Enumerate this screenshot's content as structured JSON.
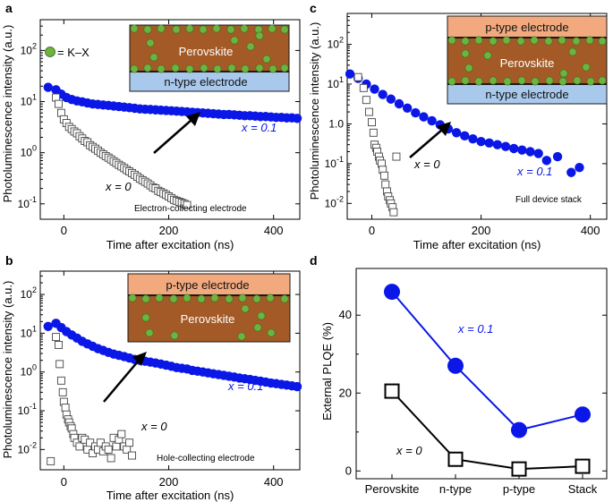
{
  "colors": {
    "blue": "#0a17e6",
    "black": "#1a1a1a",
    "perovskite": "#a35a26",
    "n_type": "#a9c9ec",
    "p_type": "#f3a97e",
    "kx_dot": "#6db33f"
  },
  "legend": {
    "kx_label": "= K–X"
  },
  "chart_data": [
    {
      "id": "a",
      "type": "scatter",
      "panel_letter": "a",
      "ylabel": "Photoluminescence intensity (a.u.)",
      "xlabel": "Time after excitation (ns)",
      "ylog": true,
      "ylim": [
        0.05,
        400
      ],
      "xlim": [
        -45,
        450
      ],
      "xticks": [
        0,
        200,
        400
      ],
      "yticks": [
        {
          "v": 0.1,
          "base": "10",
          "exp": "-1"
        },
        {
          "v": 1,
          "base": "10",
          "exp": "0"
        },
        {
          "v": 10,
          "base": "10",
          "exp": "1"
        },
        {
          "v": 100,
          "base": "10",
          "exp": "2"
        }
      ],
      "inset_label": "Electron-collecting electrode",
      "diagram": {
        "layers": [
          {
            "label": "Perovskite",
            "kind": "perovskite"
          },
          {
            "label": "n-type electrode",
            "kind": "n"
          }
        ]
      },
      "series": [
        {
          "name": "x = 0.1",
          "label": "x = 0.1",
          "style": "blue-dot",
          "x": [
            -30,
            -15,
            -5,
            5,
            15,
            25,
            35,
            45,
            55,
            65,
            75,
            85,
            95,
            105,
            115,
            125,
            135,
            145,
            155,
            165,
            175,
            185,
            195,
            205,
            215,
            225,
            235,
            245,
            255,
            265,
            275,
            285,
            295,
            305,
            315,
            325,
            335,
            345,
            355,
            365,
            375,
            385,
            395,
            405,
            415,
            425,
            435,
            445
          ],
          "y": [
            19,
            17,
            14,
            12,
            11,
            10.3,
            9.9,
            9.4,
            9.0,
            8.8,
            8.6,
            8.4,
            8.2,
            8.0,
            7.8,
            7.6,
            7.4,
            7.2,
            7.1,
            7.0,
            6.9,
            6.8,
            6.7,
            6.6,
            6.5,
            6.4,
            6.3,
            6.2,
            6.1,
            6.0,
            5.9,
            5.8,
            5.7,
            5.6,
            5.6,
            5.5,
            5.4,
            5.3,
            5.3,
            5.2,
            5.1,
            5.1,
            5.0,
            4.9,
            4.9,
            4.8,
            4.8,
            4.7
          ]
        },
        {
          "name": "x = 0",
          "label": "x = 0",
          "style": "open-square",
          "x": [
            -15,
            -10,
            -5,
            0,
            5,
            10,
            15,
            20,
            25,
            30,
            35,
            40,
            45,
            50,
            55,
            60,
            65,
            70,
            75,
            80,
            85,
            90,
            95,
            100,
            105,
            110,
            115,
            120,
            125,
            130,
            135,
            140,
            145,
            150,
            155,
            160,
            165,
            170,
            175,
            180,
            185,
            190,
            195,
            200,
            205,
            210,
            215,
            220,
            225,
            230,
            235
          ],
          "y": [
            12,
            9,
            6,
            4.5,
            3.8,
            3.2,
            2.9,
            2.6,
            2.4,
            2.1,
            1.9,
            1.7,
            1.6,
            1.4,
            1.3,
            1.2,
            1.1,
            1.0,
            0.93,
            0.86,
            0.8,
            0.74,
            0.68,
            0.63,
            0.58,
            0.54,
            0.5,
            0.46,
            0.43,
            0.4,
            0.37,
            0.34,
            0.31,
            0.29,
            0.27,
            0.25,
            0.23,
            0.21,
            0.2,
            0.18,
            0.17,
            0.16,
            0.15,
            0.14,
            0.13,
            0.12,
            0.115,
            0.11,
            0.105,
            0.1,
            0.095
          ]
        }
      ]
    },
    {
      "id": "b",
      "type": "scatter",
      "panel_letter": "b",
      "ylabel": "Photoluminescence intensity (a.u.)",
      "xlabel": "Time after excitation (ns)",
      "ylog": true,
      "ylim": [
        0.003,
        400
      ],
      "xlim": [
        -45,
        450
      ],
      "xticks": [
        0,
        200,
        400
      ],
      "yticks": [
        {
          "v": 0.01,
          "base": "10",
          "exp": "-2"
        },
        {
          "v": 0.1,
          "base": "10",
          "exp": "-1"
        },
        {
          "v": 1,
          "base": "10",
          "exp": "0"
        },
        {
          "v": 10,
          "base": "10",
          "exp": "1"
        },
        {
          "v": 100,
          "base": "10",
          "exp": "2"
        }
      ],
      "inset_label": "Hole-collecting electrode",
      "diagram": {
        "layers": [
          {
            "label": "p-type electrode",
            "kind": "p"
          },
          {
            "label": "Perovskite",
            "kind": "perovskite"
          }
        ]
      },
      "series": [
        {
          "name": "x = 0.1",
          "label": "x = 0.1",
          "style": "blue-dot",
          "x": [
            -30,
            -15,
            -5,
            5,
            15,
            25,
            35,
            45,
            55,
            65,
            75,
            85,
            95,
            105,
            115,
            125,
            135,
            145,
            155,
            165,
            175,
            185,
            195,
            205,
            215,
            225,
            235,
            245,
            255,
            265,
            275,
            285,
            295,
            305,
            315,
            325,
            335,
            345,
            355,
            365,
            375,
            385,
            395,
            405,
            415,
            425,
            435,
            445
          ],
          "y": [
            15,
            18,
            14,
            11,
            9,
            7.5,
            6.2,
            5.3,
            4.6,
            4.0,
            3.6,
            3.2,
            2.9,
            2.7,
            2.5,
            2.3,
            2.1,
            2.0,
            1.9,
            1.8,
            1.7,
            1.6,
            1.5,
            1.4,
            1.3,
            1.25,
            1.2,
            1.1,
            1.05,
            1.0,
            0.95,
            0.9,
            0.86,
            0.82,
            0.78,
            0.74,
            0.7,
            0.67,
            0.64,
            0.61,
            0.58,
            0.55,
            0.52,
            0.5,
            0.48,
            0.46,
            0.44,
            0.42
          ]
        },
        {
          "name": "x = 0",
          "label": "x = 0",
          "style": "open-square",
          "x": [
            -25,
            -15,
            -10,
            -8,
            -5,
            -2,
            0,
            3,
            5,
            8,
            10,
            13,
            15,
            18,
            20,
            25,
            30,
            35,
            40,
            45,
            50,
            55,
            60,
            65,
            70,
            75,
            80,
            85,
            90,
            95,
            100,
            105,
            110,
            115,
            120,
            125,
            130
          ],
          "y": [
            0.005,
            8,
            5,
            1.6,
            0.6,
            0.3,
            0.17,
            0.12,
            0.08,
            0.06,
            0.05,
            0.04,
            0.035,
            0.025,
            0.02,
            0.015,
            0.012,
            0.02,
            0.018,
            0.01,
            0.015,
            0.008,
            0.012,
            0.01,
            0.015,
            0.009,
            0.012,
            0.01,
            0.006,
            0.02,
            0.012,
            0.018,
            0.025,
            0.012,
            0.01,
            0.015,
            0.007
          ]
        }
      ]
    },
    {
      "id": "c",
      "type": "scatter",
      "panel_letter": "c",
      "ylabel": "Photoluminescence intensity (a.u.)",
      "xlabel": "Time after excitation (ns)",
      "ylog": true,
      "ylim": [
        0.004,
        600
      ],
      "xlim": [
        -45,
        430
      ],
      "xticks": [
        0,
        200,
        400
      ],
      "yticks": [
        {
          "v": 0.01,
          "base": "10",
          "exp": "-2"
        },
        {
          "v": 0.1,
          "base": "10",
          "exp": "-1"
        },
        {
          "v": 1,
          "base": "",
          "exp": "",
          "plain": "1.0"
        },
        {
          "v": 10,
          "base": "10",
          "exp": "1"
        },
        {
          "v": 100,
          "base": "10",
          "exp": "2"
        }
      ],
      "inset_label": "Full device stack",
      "diagram": {
        "layers": [
          {
            "label": "p-type electrode",
            "kind": "p"
          },
          {
            "label": "Perovskite",
            "kind": "perovskite"
          },
          {
            "label": "n-type electrode",
            "kind": "n"
          }
        ]
      },
      "series": [
        {
          "name": "x = 0.1",
          "label": "x = 0.1",
          "style": "blue-dot",
          "x": [
            -40,
            -25,
            -10,
            5,
            20,
            35,
            50,
            65,
            80,
            95,
            110,
            125,
            140,
            155,
            170,
            185,
            200,
            215,
            230,
            245,
            260,
            275,
            290,
            305,
            320,
            340,
            365,
            380
          ],
          "y": [
            18,
            14,
            10,
            7.5,
            5.5,
            4.2,
            3.2,
            2.5,
            1.9,
            1.5,
            1.2,
            0.95,
            0.75,
            0.6,
            0.5,
            0.42,
            0.36,
            0.33,
            0.3,
            0.27,
            0.24,
            0.22,
            0.2,
            0.18,
            0.12,
            0.15,
            0.06,
            0.08
          ]
        },
        {
          "name": "x = 0",
          "label": "x = 0",
          "style": "open-square",
          "x": [
            -25,
            -15,
            -10,
            -5,
            0,
            3,
            5,
            8,
            10,
            13,
            15,
            18,
            20,
            23,
            25,
            28,
            30,
            33,
            35,
            38,
            40,
            45
          ],
          "y": [
            15,
            8,
            4,
            2,
            1.1,
            0.6,
            0.3,
            0.25,
            0.2,
            0.15,
            0.12,
            0.1,
            0.07,
            0.05,
            0.03,
            0.02,
            0.015,
            0.012,
            0.01,
            0.008,
            0.006,
            0.15
          ]
        }
      ]
    },
    {
      "id": "d",
      "type": "line",
      "panel_letter": "d",
      "ylabel": "External PLQE (%)",
      "xlabel": "",
      "ylim": [
        -2,
        52
      ],
      "yticks": [
        0,
        20,
        40
      ],
      "categories": [
        "Perovskite",
        "n-type",
        "p-type",
        "Stack"
      ],
      "series": [
        {
          "name": "x = 0.1",
          "label": "x = 0.1",
          "style": "blue-dot",
          "values": [
            46,
            27,
            10.5,
            14.5
          ]
        },
        {
          "name": "x = 0",
          "label": "x = 0",
          "style": "open-square",
          "values": [
            20.5,
            3,
            0.5,
            1.2
          ]
        }
      ]
    }
  ]
}
